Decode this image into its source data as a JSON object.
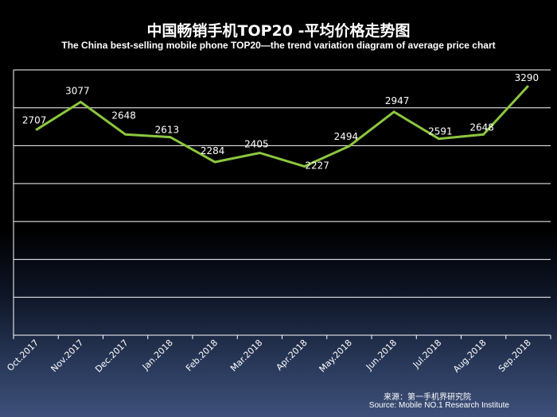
{
  "title": "中国畅销手机TOP20 -平均价格走势图",
  "subtitle": "The China best-selling mobile phone TOP20—the trend variation diagram of average price chart",
  "source_cn": "来源：第一手机界研究院",
  "source_en": "Source: Mobile NO.1 Research Institute",
  "colors": {
    "line": "#8cc63f",
    "grid": "#ffffff",
    "background": "#000000"
  },
  "chart_data": {
    "type": "line",
    "categories": [
      "Oct.2017",
      "Nov.2017",
      "Dec.2017",
      "Jan.2018",
      "Feb.2018",
      "Mar.2018",
      "Apr.2018",
      "May.2018",
      "Jun.2018",
      "Jul.2018",
      "Aug.2018",
      "Sep.2018"
    ],
    "values": [
      2707,
      3077,
      2648,
      2613,
      2284,
      2405,
      2227,
      2494,
      2947,
      2591,
      2648,
      3290
    ],
    "ylim": [
      0,
      3500
    ],
    "grid": true,
    "y_tick_labels_shown": false,
    "legend": "none"
  }
}
